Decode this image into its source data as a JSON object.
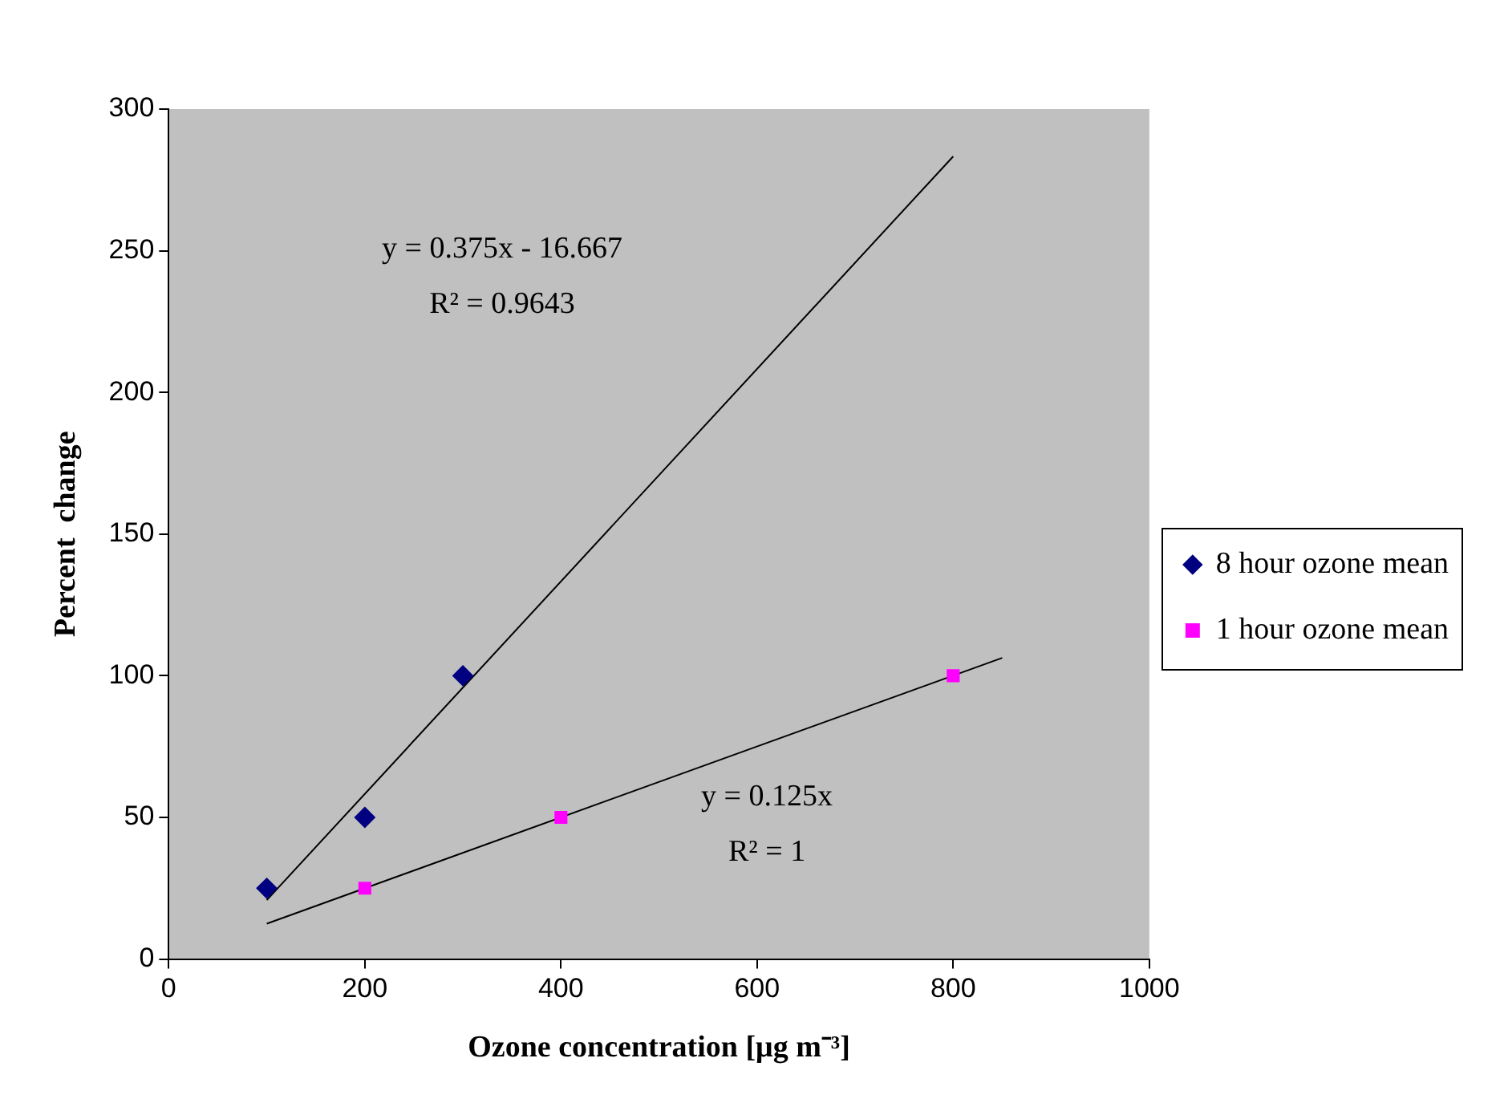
{
  "chart_data": {
    "type": "scatter",
    "xlabel": "Ozone concentration [μg m⁻³]",
    "ylabel": "Percent  change",
    "xlim": [
      0,
      1000
    ],
    "xticks": [
      0,
      200,
      400,
      600,
      800,
      1000
    ],
    "ylim": [
      0,
      300
    ],
    "yticks": [
      0,
      50,
      100,
      150,
      200,
      250,
      300
    ],
    "grid": false,
    "legend": "right",
    "series": [
      {
        "name": "8 hour ozone mean",
        "type": "scatter",
        "marker": "diamond",
        "color": "#000080",
        "x": [
          100,
          200,
          300
        ],
        "values": [
          25,
          50,
          100
        ]
      },
      {
        "name": "1 hour ozone mean",
        "type": "scatter",
        "marker": "square",
        "color": "#ff00ff",
        "x": [
          200,
          400,
          800
        ],
        "values": [
          25,
          50,
          100
        ]
      },
      {
        "type": "line",
        "marker": "none",
        "color": "#000000",
        "x": [
          100,
          800
        ],
        "values": [
          20.8,
          283.3
        ]
      },
      {
        "type": "line",
        "marker": "none",
        "color": "#000000",
        "x": [
          100,
          850
        ],
        "values": [
          12.5,
          106.3
        ]
      }
    ],
    "annotations": [
      "y = 0.375x - 16.667",
      "R² = 0.9643",
      "y = 0.125x",
      "R² = 1"
    ]
  }
}
